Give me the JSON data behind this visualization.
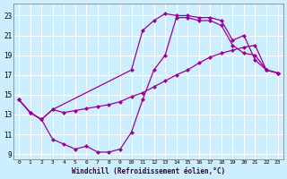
{
  "xlabel": "Windchill (Refroidissement éolien,°C)",
  "bg_color": "#cceeff",
  "grid_color": "#ffffff",
  "line_color": "#990099",
  "markersize": 2.5,
  "linewidth": 0.9,
  "xlim": [
    -0.5,
    23.5
  ],
  "ylim": [
    8.5,
    24.2
  ],
  "xticks": [
    0,
    1,
    2,
    3,
    4,
    5,
    6,
    7,
    8,
    9,
    10,
    11,
    12,
    13,
    14,
    15,
    16,
    17,
    18,
    19,
    20,
    21,
    22,
    23
  ],
  "yticks": [
    9,
    11,
    13,
    15,
    17,
    19,
    21,
    23
  ],
  "line1_x": [
    0,
    1,
    2,
    3,
    10,
    11,
    12,
    13,
    14,
    15,
    16,
    17,
    18,
    19,
    20,
    21,
    22,
    23
  ],
  "line1_y": [
    14.5,
    13.2,
    12.5,
    13.5,
    17.5,
    21.5,
    22.5,
    23.2,
    23.0,
    23.0,
    22.8,
    22.8,
    22.5,
    20.5,
    21.0,
    18.5,
    17.5,
    17.2
  ],
  "line2_x": [
    0,
    1,
    2,
    3,
    4,
    5,
    6,
    7,
    8,
    9,
    10,
    11,
    12,
    13,
    14,
    15,
    16,
    17,
    18,
    19,
    20,
    21,
    22,
    23
  ],
  "line2_y": [
    14.5,
    13.2,
    12.5,
    13.5,
    13.2,
    13.4,
    13.6,
    13.8,
    14.0,
    14.3,
    14.8,
    15.2,
    15.8,
    16.4,
    17.0,
    17.5,
    18.2,
    18.8,
    19.2,
    19.5,
    19.8,
    20.0,
    17.5,
    17.2
  ],
  "line3_x": [
    0,
    1,
    2,
    3,
    4,
    5,
    6,
    7,
    8,
    9,
    10,
    11,
    12,
    13,
    14,
    15,
    16,
    17,
    18,
    19,
    20,
    21,
    22,
    23
  ],
  "line3_y": [
    14.5,
    13.2,
    12.5,
    10.5,
    10.0,
    9.5,
    9.8,
    9.2,
    9.2,
    9.5,
    11.2,
    14.5,
    17.5,
    19.0,
    22.8,
    22.8,
    22.5,
    22.5,
    22.0,
    20.0,
    19.2,
    19.0,
    17.5,
    17.2
  ]
}
